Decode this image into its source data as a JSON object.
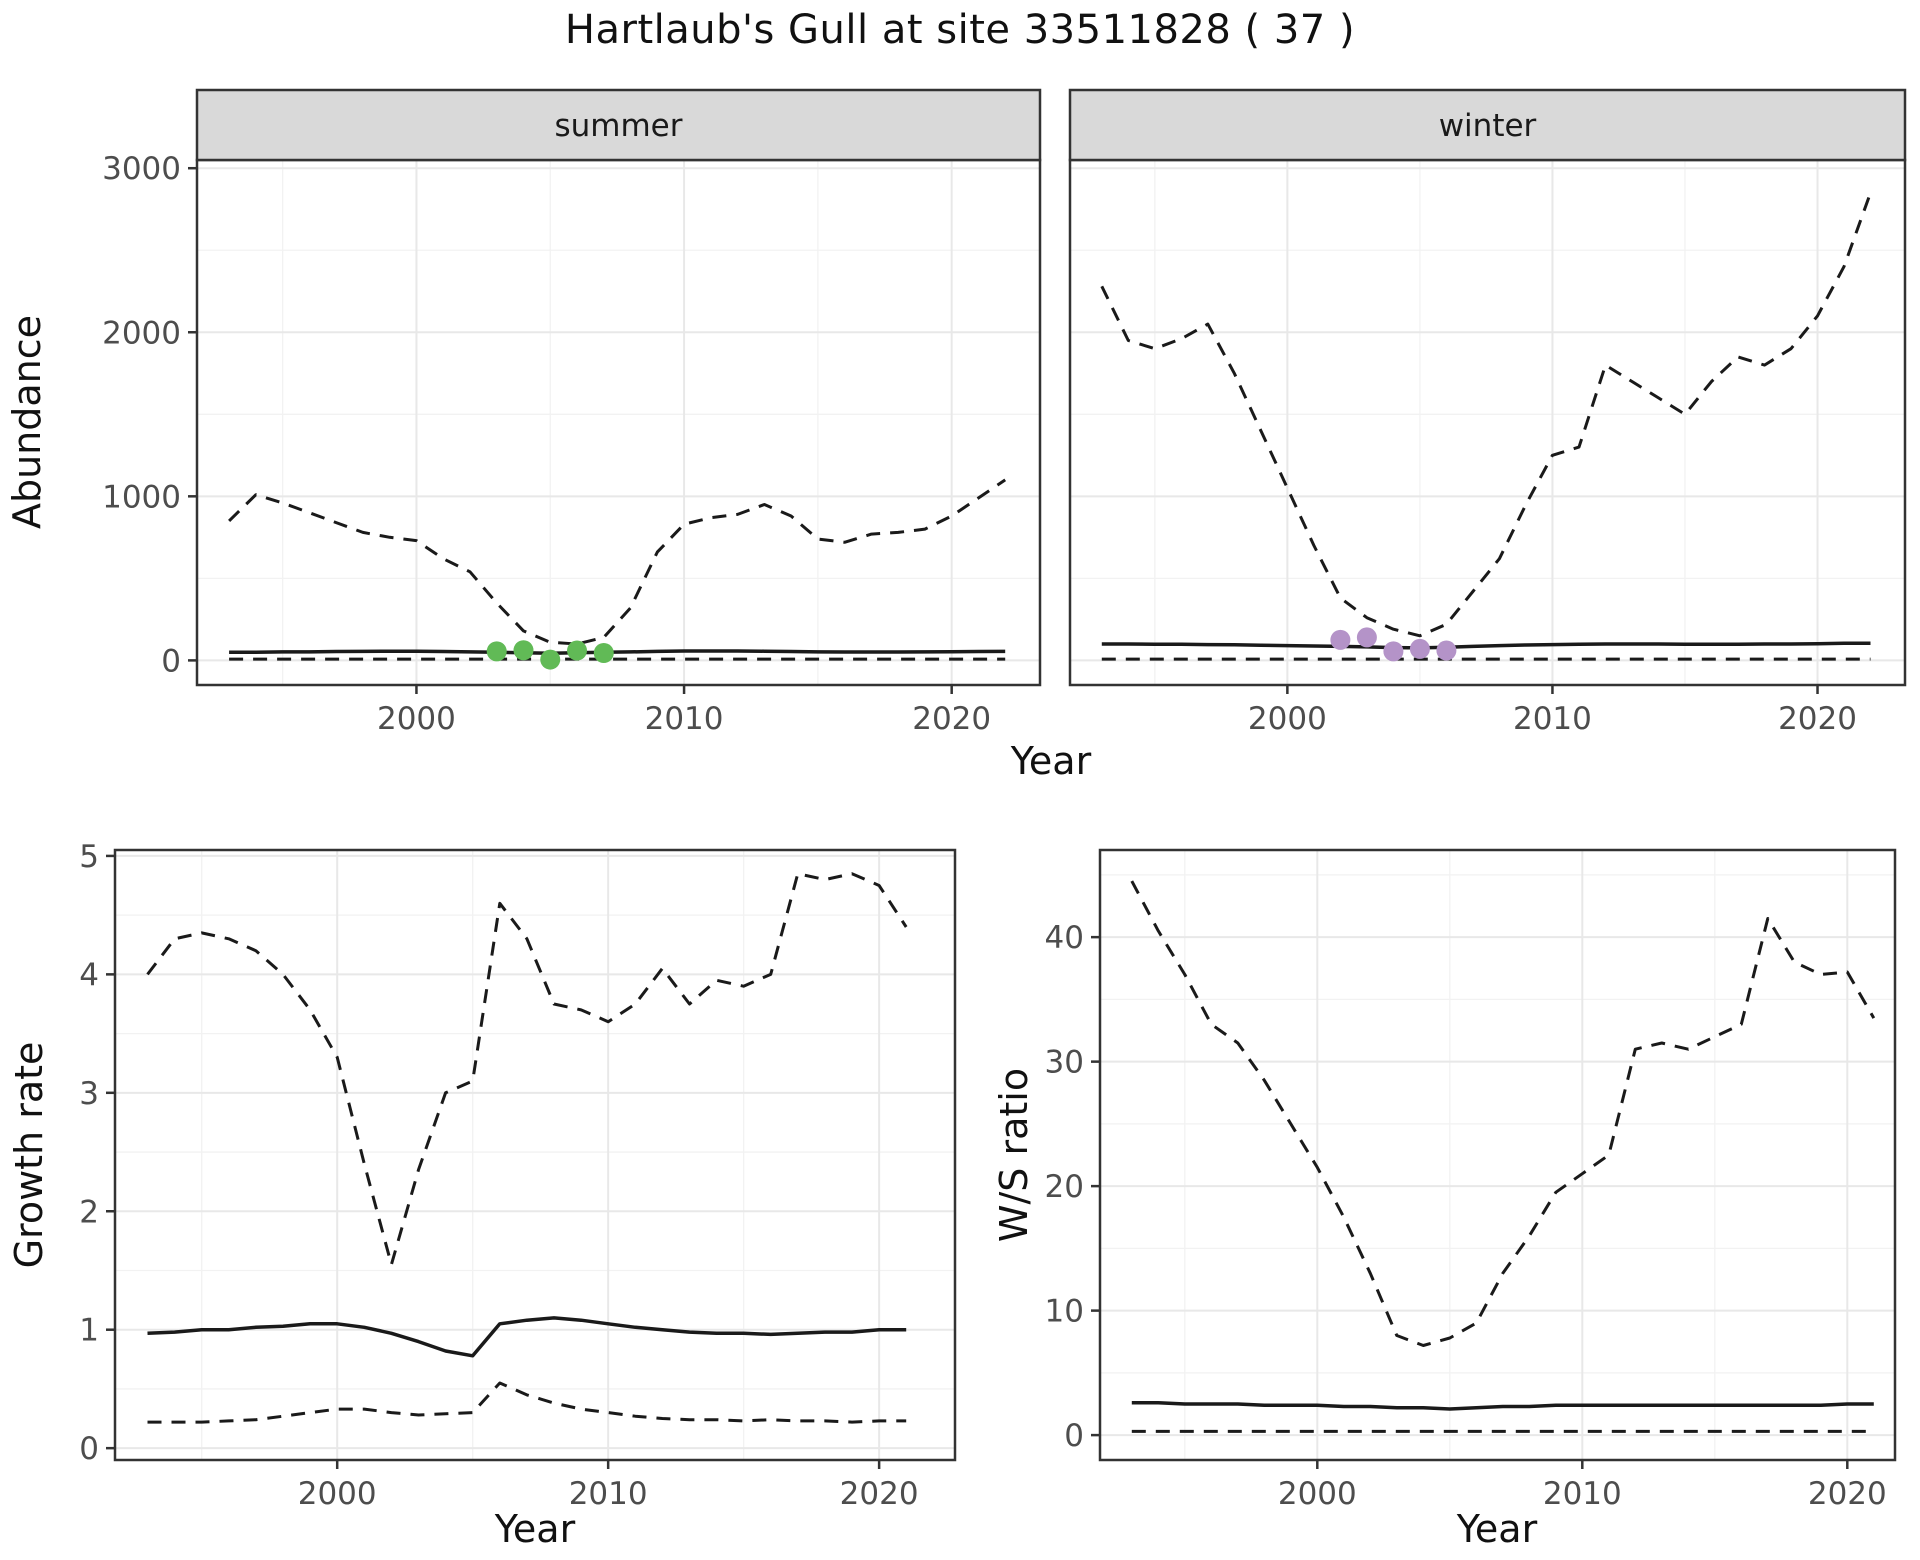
{
  "title": "Hartlaub's Gull at site 33511828 ( 37 )",
  "colors": {
    "line": "#1A1A1A",
    "grid_major": "#E8E8E8",
    "grid_minor": "#F2F2F2",
    "strip_bg": "#D9D9D9",
    "panel_border": "#333333",
    "tick_label": "#4D4D4D",
    "summer_points": "#61BA56",
    "winter_points": "#B493C8"
  },
  "chart_data": [
    {
      "id": "abundance-summer",
      "type": "line",
      "strip": "summer",
      "ylabel": "Abundance",
      "xlabel": "Year",
      "xlim": [
        1991.8,
        2023.3
      ],
      "ylim": [
        -150,
        3050
      ],
      "xticks": [
        2000,
        2010,
        2020
      ],
      "yticks": [
        0,
        1000,
        2000,
        3000
      ],
      "series": [
        {
          "name": "upper-ci",
          "style": "dashed",
          "x": [
            1993,
            1994,
            1995,
            1996,
            1997,
            1998,
            1999,
            2000,
            2001,
            2002,
            2003,
            2004,
            2005,
            2006,
            2007,
            2008,
            2009,
            2010,
            2011,
            2012,
            2013,
            2014,
            2015,
            2016,
            2017,
            2018,
            2019,
            2020,
            2021,
            2022
          ],
          "y": [
            850,
            1010,
            960,
            900,
            840,
            780,
            750,
            730,
            620,
            540,
            350,
            180,
            110,
            100,
            140,
            320,
            660,
            830,
            870,
            890,
            950,
            880,
            740,
            720,
            770,
            780,
            800,
            880,
            990,
            1100
          ]
        },
        {
          "name": "median",
          "style": "solid",
          "x": [
            1993,
            1994,
            1995,
            1996,
            1997,
            1998,
            1999,
            2000,
            2001,
            2002,
            2003,
            2004,
            2005,
            2006,
            2007,
            2008,
            2009,
            2010,
            2011,
            2012,
            2013,
            2014,
            2015,
            2016,
            2017,
            2018,
            2019,
            2020,
            2021,
            2022
          ],
          "y": [
            50,
            50,
            52,
            52,
            54,
            55,
            56,
            56,
            54,
            52,
            50,
            46,
            44,
            46,
            50,
            52,
            55,
            57,
            57,
            57,
            56,
            54,
            52,
            51,
            51,
            51,
            52,
            53,
            54,
            55
          ]
        },
        {
          "name": "lower-ci",
          "style": "dashed",
          "x": [
            1993,
            1994,
            1995,
            1996,
            1997,
            1998,
            1999,
            2000,
            2001,
            2002,
            2003,
            2004,
            2005,
            2006,
            2007,
            2008,
            2009,
            2010,
            2011,
            2012,
            2013,
            2014,
            2015,
            2016,
            2017,
            2018,
            2019,
            2020,
            2021,
            2022
          ],
          "y": [
            8,
            8,
            8,
            8,
            8,
            8,
            8,
            8,
            8,
            8,
            8,
            8,
            8,
            8,
            8,
            8,
            8,
            8,
            8,
            8,
            8,
            8,
            8,
            8,
            8,
            8,
            8,
            8,
            8,
            8
          ]
        }
      ],
      "points": [
        {
          "name": "summer-observation-point",
          "color_key": "summer_points",
          "x": [
            2003,
            2004,
            2005,
            2006,
            2007
          ],
          "y": [
            55,
            62,
            5,
            60,
            45
          ]
        }
      ]
    },
    {
      "id": "abundance-winter",
      "type": "line",
      "strip": "winter",
      "ylabel": "Abundance",
      "xlabel": "Year",
      "xlim": [
        1991.8,
        2023.3
      ],
      "ylim": [
        -150,
        3050
      ],
      "xticks": [
        2000,
        2010,
        2020
      ],
      "yticks": [
        0,
        1000,
        2000,
        3000
      ],
      "series": [
        {
          "name": "upper-ci",
          "style": "dashed",
          "x": [
            1993,
            1994,
            1995,
            1996,
            1997,
            1998,
            1999,
            2000,
            2001,
            2002,
            2003,
            2004,
            2005,
            2006,
            2007,
            2008,
            2009,
            2010,
            2011,
            2012,
            2013,
            2014,
            2015,
            2016,
            2017,
            2018,
            2019,
            2020,
            2021,
            2022
          ],
          "y": [
            2280,
            1950,
            1900,
            1960,
            2050,
            1750,
            1400,
            1050,
            700,
            380,
            260,
            190,
            150,
            220,
            420,
            620,
            950,
            1250,
            1300,
            1800,
            1700,
            1600,
            1500,
            1700,
            1850,
            1800,
            1900,
            2100,
            2400,
            2850
          ]
        },
        {
          "name": "median",
          "style": "solid",
          "x": [
            1993,
            1994,
            1995,
            1996,
            1997,
            1998,
            1999,
            2000,
            2001,
            2002,
            2003,
            2004,
            2005,
            2006,
            2007,
            2008,
            2009,
            2010,
            2011,
            2012,
            2013,
            2014,
            2015,
            2016,
            2017,
            2018,
            2019,
            2020,
            2021,
            2022
          ],
          "y": [
            100,
            100,
            98,
            98,
            96,
            95,
            92,
            90,
            88,
            85,
            82,
            78,
            76,
            80,
            85,
            90,
            94,
            96,
            98,
            100,
            100,
            100,
            98,
            98,
            98,
            100,
            100,
            102,
            104,
            105
          ]
        },
        {
          "name": "lower-ci",
          "style": "dashed",
          "x": [
            1993,
            1994,
            1995,
            1996,
            1997,
            1998,
            1999,
            2000,
            2001,
            2002,
            2003,
            2004,
            2005,
            2006,
            2007,
            2008,
            2009,
            2010,
            2011,
            2012,
            2013,
            2014,
            2015,
            2016,
            2017,
            2018,
            2019,
            2020,
            2021,
            2022
          ],
          "y": [
            8,
            8,
            8,
            8,
            8,
            8,
            8,
            8,
            8,
            8,
            8,
            8,
            8,
            8,
            8,
            8,
            8,
            8,
            8,
            8,
            8,
            8,
            8,
            8,
            8,
            8,
            8,
            8,
            8,
            8
          ]
        }
      ],
      "points": [
        {
          "name": "winter-observation-point",
          "color_key": "winter_points",
          "x": [
            2002,
            2003,
            2004,
            2005,
            2006
          ],
          "y": [
            125,
            140,
            55,
            70,
            60
          ]
        }
      ]
    },
    {
      "id": "growth-rate",
      "type": "line",
      "strip": null,
      "ylabel": "Growth rate",
      "xlabel": "Year",
      "xlim": [
        1991.8,
        2022.8
      ],
      "ylim": [
        -0.1,
        5.05
      ],
      "xticks": [
        2000,
        2010,
        2020
      ],
      "yticks": [
        0,
        1,
        2,
        3,
        4,
        5
      ],
      "series": [
        {
          "name": "upper-ci",
          "style": "dashed",
          "x": [
            1993,
            1994,
            1995,
            1996,
            1997,
            1998,
            1999,
            2000,
            2001,
            2002,
            2003,
            2004,
            2005,
            2006,
            2007,
            2008,
            2009,
            2010,
            2011,
            2012,
            2013,
            2014,
            2015,
            2016,
            2017,
            2018,
            2019,
            2020,
            2021
          ],
          "y": [
            4.0,
            4.3,
            4.35,
            4.3,
            4.2,
            4.0,
            3.7,
            3.3,
            2.4,
            1.55,
            2.35,
            3.0,
            3.1,
            4.6,
            4.3,
            3.75,
            3.7,
            3.6,
            3.75,
            4.05,
            3.75,
            3.95,
            3.9,
            4.0,
            4.85,
            4.8,
            4.85,
            4.75,
            4.4
          ]
        },
        {
          "name": "median",
          "style": "solid",
          "x": [
            1993,
            1994,
            1995,
            1996,
            1997,
            1998,
            1999,
            2000,
            2001,
            2002,
            2003,
            2004,
            2005,
            2006,
            2007,
            2008,
            2009,
            2010,
            2011,
            2012,
            2013,
            2014,
            2015,
            2016,
            2017,
            2018,
            2019,
            2020,
            2021
          ],
          "y": [
            0.97,
            0.98,
            1.0,
            1.0,
            1.02,
            1.03,
            1.05,
            1.05,
            1.02,
            0.97,
            0.9,
            0.82,
            0.78,
            1.05,
            1.08,
            1.1,
            1.08,
            1.05,
            1.02,
            1.0,
            0.98,
            0.97,
            0.97,
            0.96,
            0.97,
            0.98,
            0.98,
            1.0,
            1.0
          ]
        },
        {
          "name": "lower-ci",
          "style": "dashed",
          "x": [
            1993,
            1994,
            1995,
            1996,
            1997,
            1998,
            1999,
            2000,
            2001,
            2002,
            2003,
            2004,
            2005,
            2006,
            2007,
            2008,
            2009,
            2010,
            2011,
            2012,
            2013,
            2014,
            2015,
            2016,
            2017,
            2018,
            2019,
            2020,
            2021
          ],
          "y": [
            0.22,
            0.22,
            0.22,
            0.23,
            0.24,
            0.27,
            0.3,
            0.33,
            0.33,
            0.3,
            0.28,
            0.29,
            0.3,
            0.55,
            0.45,
            0.38,
            0.33,
            0.3,
            0.27,
            0.25,
            0.24,
            0.24,
            0.23,
            0.24,
            0.23,
            0.23,
            0.22,
            0.23,
            0.23
          ]
        }
      ],
      "points": []
    },
    {
      "id": "ws-ratio",
      "type": "line",
      "strip": null,
      "ylabel": "W/S ratio",
      "xlabel": "Year",
      "xlim": [
        1991.8,
        2021.8
      ],
      "ylim": [
        -2,
        47
      ],
      "xticks": [
        2000,
        2010,
        2020
      ],
      "yticks": [
        0,
        10,
        20,
        30,
        40
      ],
      "series": [
        {
          "name": "upper-ci",
          "style": "dashed",
          "x": [
            1993,
            1994,
            1995,
            1996,
            1997,
            1998,
            1999,
            2000,
            2001,
            2002,
            2003,
            2004,
            2005,
            2006,
            2007,
            2008,
            2009,
            2010,
            2011,
            2012,
            2013,
            2014,
            2015,
            2016,
            2017,
            2018,
            2019,
            2020,
            2021
          ],
          "y": [
            44.5,
            40.5,
            37,
            33,
            31.5,
            28.5,
            25,
            21.5,
            17.5,
            13,
            8,
            7.2,
            7.8,
            9,
            13,
            16,
            19.5,
            21,
            22.5,
            31,
            31.5,
            31,
            32,
            33,
            41.5,
            38,
            37,
            37.2,
            33.5
          ]
        },
        {
          "name": "median",
          "style": "solid",
          "x": [
            1993,
            1994,
            1995,
            1996,
            1997,
            1998,
            1999,
            2000,
            2001,
            2002,
            2003,
            2004,
            2005,
            2006,
            2007,
            2008,
            2009,
            2010,
            2011,
            2012,
            2013,
            2014,
            2015,
            2016,
            2017,
            2018,
            2019,
            2020,
            2021
          ],
          "y": [
            2.6,
            2.6,
            2.5,
            2.5,
            2.5,
            2.4,
            2.4,
            2.4,
            2.3,
            2.3,
            2.2,
            2.2,
            2.1,
            2.2,
            2.3,
            2.3,
            2.4,
            2.4,
            2.4,
            2.4,
            2.4,
            2.4,
            2.4,
            2.4,
            2.4,
            2.4,
            2.4,
            2.5,
            2.5
          ]
        },
        {
          "name": "lower-ci",
          "style": "dashed",
          "x": [
            1993,
            1994,
            1995,
            1996,
            1997,
            1998,
            1999,
            2000,
            2001,
            2002,
            2003,
            2004,
            2005,
            2006,
            2007,
            2008,
            2009,
            2010,
            2011,
            2012,
            2013,
            2014,
            2015,
            2016,
            2017,
            2018,
            2019,
            2020,
            2021
          ],
          "y": [
            0.3,
            0.3,
            0.3,
            0.3,
            0.3,
            0.3,
            0.3,
            0.3,
            0.3,
            0.3,
            0.3,
            0.3,
            0.3,
            0.3,
            0.3,
            0.3,
            0.3,
            0.3,
            0.3,
            0.3,
            0.3,
            0.3,
            0.3,
            0.3,
            0.3,
            0.3,
            0.3,
            0.3,
            0.3
          ]
        }
      ],
      "points": []
    }
  ]
}
